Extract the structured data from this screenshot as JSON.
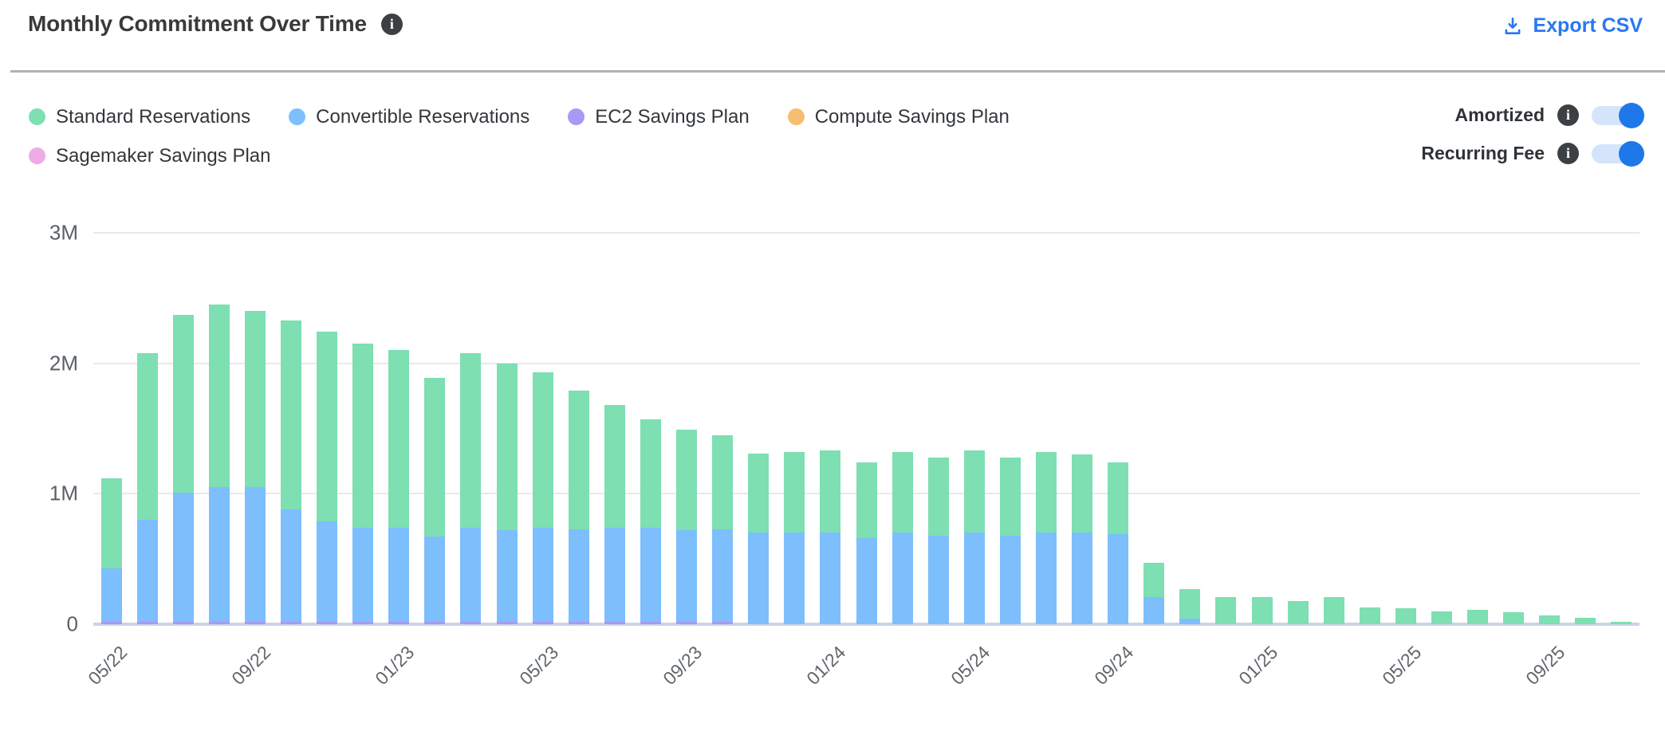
{
  "header": {
    "title": "Monthly Commitment Over Time",
    "export_label": "Export CSV"
  },
  "colors": {
    "standard_reservations": "#7ddfb2",
    "convertible_reservations": "#7dbefc",
    "ec2_savings_plan": "#a79af5",
    "compute_savings_plan": "#f6be72",
    "sagemaker_savings_plan": "#efaae8",
    "export_link": "#2878f0",
    "toggle_on_knob": "#1f78e9",
    "toggle_track": "#d4e4fa",
    "info_icon_bg": "#3d4043",
    "gridline": "#e9e9e9",
    "axis_baseline": "#ccd3e8",
    "divider": "#b1b1b1"
  },
  "legend": {
    "items": [
      {
        "label": "Standard Reservations",
        "color": "#7ddfb2"
      },
      {
        "label": "Convertible Reservations",
        "color": "#7dbefc"
      },
      {
        "label": "EC2 Savings Plan",
        "color": "#a79af5"
      },
      {
        "label": "Compute Savings Plan",
        "color": "#f6be72"
      },
      {
        "label": "Sagemaker Savings Plan",
        "color": "#efaae8"
      }
    ]
  },
  "controls": {
    "toggles": [
      {
        "label": "Amortized",
        "state": "on"
      },
      {
        "label": "Recurring Fee",
        "state": "on"
      }
    ]
  },
  "chart_data": {
    "type": "bar",
    "stacked": true,
    "values_unit": "millions",
    "ylim_millions": [
      0,
      3
    ],
    "ytick_labels": [
      "0",
      "1M",
      "2M",
      "3M"
    ],
    "grid": true,
    "x": [
      "05/22",
      "06/22",
      "07/22",
      "08/22",
      "09/22",
      "10/22",
      "11/22",
      "12/22",
      "01/23",
      "02/23",
      "03/23",
      "04/23",
      "05/23",
      "06/23",
      "07/23",
      "08/23",
      "09/23",
      "10/23",
      "11/23",
      "12/23",
      "01/24",
      "02/24",
      "03/24",
      "04/24",
      "05/24",
      "06/24",
      "07/24",
      "08/24",
      "09/24",
      "10/24",
      "11/24",
      "12/24",
      "01/25",
      "02/25",
      "03/25",
      "04/25",
      "05/25",
      "06/25",
      "07/25",
      "08/25",
      "09/25",
      "10/25",
      "11/25"
    ],
    "tick_indices": [
      0,
      4,
      8,
      12,
      16,
      20,
      24,
      28,
      32,
      36,
      40
    ],
    "tick_labels": [
      "05/22",
      "09/22",
      "01/23",
      "05/23",
      "09/23",
      "01/24",
      "05/24",
      "09/24",
      "01/25",
      "05/25",
      "09/25"
    ],
    "stack_order_bottom_up": [
      "EC2 Savings Plan",
      "Convertible Reservations",
      "Standard Reservations",
      "Compute Savings Plan",
      "Sagemaker Savings Plan"
    ],
    "series": [
      {
        "name": "Standard Reservations",
        "color": "#7ddfb2",
        "values": [
          0.69,
          1.28,
          1.36,
          1.4,
          1.35,
          1.45,
          1.45,
          1.41,
          1.36,
          1.22,
          1.34,
          1.28,
          1.19,
          1.06,
          0.94,
          0.83,
          0.77,
          0.72,
          0.61,
          0.62,
          0.63,
          0.58,
          0.62,
          0.6,
          0.63,
          0.6,
          0.62,
          0.6,
          0.55,
          0.26,
          0.23,
          0.21,
          0.21,
          0.18,
          0.21,
          0.13,
          0.12,
          0.1,
          0.11,
          0.09,
          0.07,
          0.05,
          0.02
        ]
      },
      {
        "name": "Convertible Reservations",
        "color": "#7dbefc",
        "values": [
          0.41,
          0.78,
          0.99,
          1.03,
          1.03,
          0.86,
          0.77,
          0.72,
          0.72,
          0.65,
          0.72,
          0.7,
          0.72,
          0.71,
          0.72,
          0.72,
          0.7,
          0.71,
          0.7,
          0.7,
          0.7,
          0.66,
          0.7,
          0.68,
          0.7,
          0.68,
          0.7,
          0.7,
          0.69,
          0.21,
          0.04,
          0,
          0,
          0,
          0,
          0,
          0,
          0,
          0,
          0,
          0,
          0,
          0
        ]
      },
      {
        "name": "EC2 Savings Plan",
        "color": "#a79af5",
        "values": [
          0.02,
          0.02,
          0.02,
          0.02,
          0.02,
          0.02,
          0.02,
          0.02,
          0.02,
          0.02,
          0.02,
          0.02,
          0.02,
          0.02,
          0.02,
          0.02,
          0.02,
          0.02,
          0,
          0,
          0,
          0,
          0,
          0,
          0,
          0,
          0,
          0,
          0,
          0,
          0,
          0,
          0,
          0,
          0,
          0,
          0,
          0,
          0,
          0,
          0,
          0,
          0
        ]
      },
      {
        "name": "Compute Savings Plan",
        "color": "#f6be72",
        "values": [
          0,
          0,
          0,
          0,
          0,
          0,
          0,
          0,
          0,
          0,
          0,
          0,
          0,
          0,
          0,
          0,
          0,
          0,
          0,
          0,
          0,
          0,
          0,
          0,
          0,
          0,
          0,
          0,
          0,
          0,
          0,
          0,
          0,
          0,
          0,
          0,
          0,
          0,
          0,
          0,
          0,
          0,
          0
        ]
      },
      {
        "name": "Sagemaker Savings Plan",
        "color": "#efaae8",
        "values": [
          0,
          0,
          0,
          0,
          0,
          0,
          0,
          0,
          0,
          0,
          0,
          0,
          0,
          0,
          0,
          0,
          0,
          0,
          0,
          0,
          0,
          0,
          0,
          0,
          0,
          0,
          0,
          0,
          0,
          0,
          0,
          0,
          0,
          0,
          0,
          0,
          0,
          0,
          0,
          0,
          0,
          0,
          0
        ]
      }
    ]
  }
}
